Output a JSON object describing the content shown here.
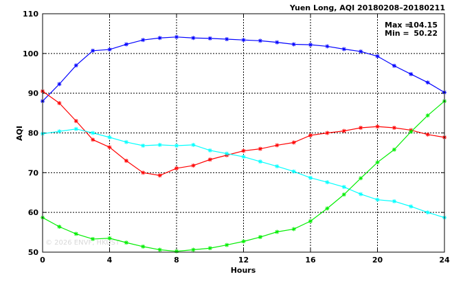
{
  "chart_data": {
    "type": "line",
    "title": "Yuen Long, AQI 20180208–20180211",
    "xlabel": "Hours",
    "ylabel": "AQI",
    "xlim": [
      0,
      24
    ],
    "ylim": [
      50,
      110
    ],
    "xticks": [
      0,
      4,
      8,
      12,
      16,
      20,
      24
    ],
    "yticks": [
      50,
      60,
      70,
      80,
      90,
      100,
      110
    ],
    "grid": true,
    "stats": {
      "max_label": "Max =",
      "max_value": "104.15",
      "min_label": "Min =",
      "min_value": "50.22"
    },
    "watermark": "© 2026 ENVF, HKUST",
    "x": [
      0,
      1,
      2,
      3,
      4,
      5,
      6,
      7,
      8,
      9,
      10,
      11,
      12,
      13,
      14,
      15,
      16,
      17,
      18,
      19,
      20,
      21,
      22,
      23,
      24
    ],
    "series": [
      {
        "color": "#0000ff",
        "values": [
          88.0,
          92.3,
          97.0,
          100.7,
          101.0,
          102.3,
          103.4,
          103.9,
          104.15,
          103.9,
          103.8,
          103.6,
          103.4,
          103.2,
          102.8,
          102.3,
          102.2,
          101.8,
          101.1,
          100.5,
          99.3,
          96.9,
          94.8,
          92.7,
          90.2
        ]
      },
      {
        "color": "#ff0000",
        "values": [
          90.5,
          87.5,
          83.0,
          78.3,
          76.4,
          73.0,
          70.0,
          69.3,
          71.1,
          71.8,
          73.3,
          74.4,
          75.5,
          76.0,
          76.9,
          77.6,
          79.4,
          80.0,
          80.5,
          81.3,
          81.6,
          81.3,
          80.7,
          79.6,
          78.9
        ]
      },
      {
        "color": "#00ffff",
        "values": [
          79.8,
          80.4,
          81.0,
          80.0,
          78.9,
          77.7,
          76.8,
          77.0,
          76.8,
          77.0,
          75.6,
          74.8,
          74.0,
          72.8,
          71.6,
          70.3,
          68.7,
          67.6,
          66.4,
          64.6,
          63.2,
          62.8,
          61.5,
          60.0,
          58.7
        ]
      },
      {
        "color": "#00ee00",
        "values": [
          58.7,
          56.4,
          54.6,
          53.3,
          53.5,
          52.4,
          51.4,
          50.6,
          50.22,
          50.6,
          51.0,
          51.8,
          52.7,
          53.8,
          55.1,
          55.8,
          57.8,
          61.0,
          64.5,
          68.6,
          72.6,
          75.8,
          80.3,
          84.4,
          88.0
        ]
      }
    ]
  }
}
